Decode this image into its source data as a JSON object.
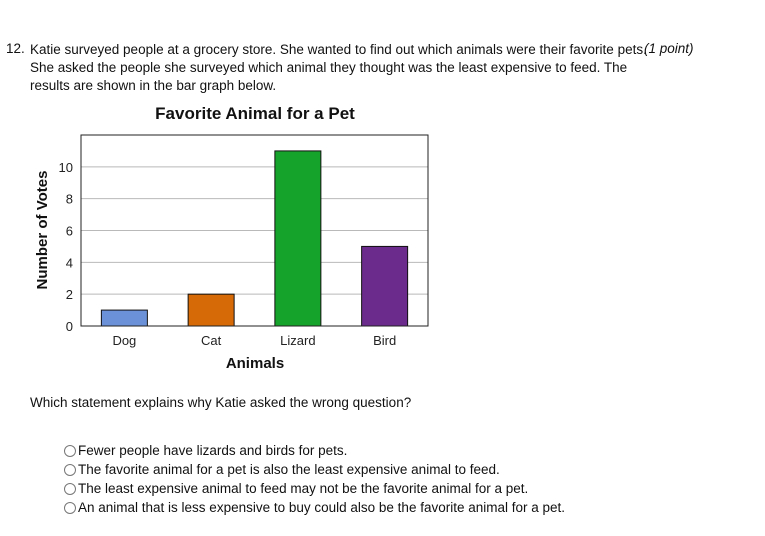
{
  "question": {
    "number": "12.",
    "lines": [
      "Katie surveyed people at a grocery store. She wanted to find out which animals were their favorite pets.",
      "She asked the people she surveyed which animal they thought was the least expensive to feed. The",
      "results are shown in the bar graph below."
    ],
    "points": "(1 point)",
    "prompt": "Which statement explains why Katie asked the wrong question?"
  },
  "options": [
    "Fewer people have lizards and birds for pets.",
    "The favorite animal for a pet is also the least expensive animal to feed.",
    "The least expensive animal to feed may not be the favorite animal for a pet.",
    "An animal that is less expensive to buy could also be the favorite animal for a pet."
  ],
  "chart_data": {
    "type": "bar",
    "title": "Favorite Animal for a Pet",
    "xlabel": "Animals",
    "ylabel": "Number of Votes",
    "categories": [
      "Dog",
      "Cat",
      "Lizard",
      "Bird"
    ],
    "values": [
      1,
      2,
      11,
      5
    ],
    "colors": [
      "#6b92d8",
      "#d66a06",
      "#16a32b",
      "#6b2b8d"
    ],
    "ylim": [
      0,
      12
    ],
    "yticks": [
      "0",
      "2",
      "4",
      "6",
      "8",
      "10"
    ],
    "grid": true
  }
}
